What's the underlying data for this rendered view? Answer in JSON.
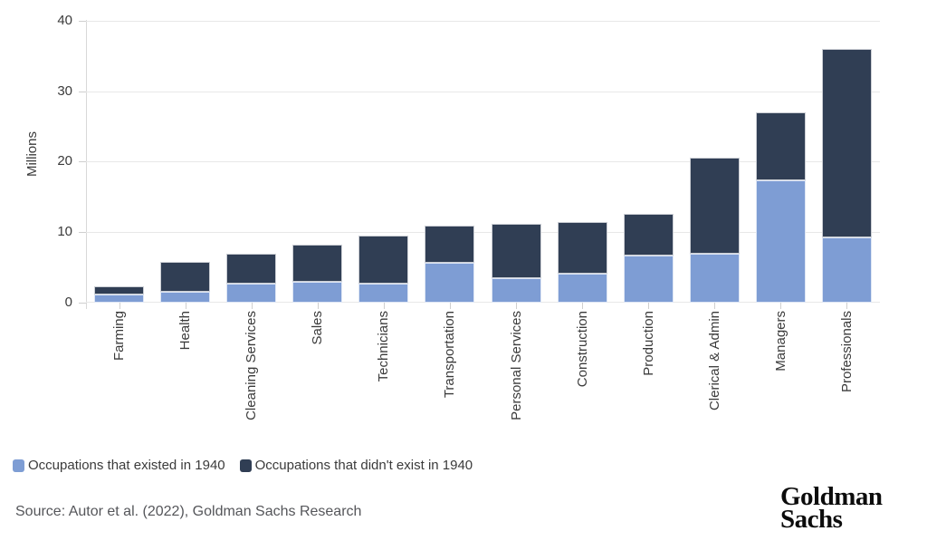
{
  "chart_data": {
    "type": "bar",
    "stacked": true,
    "ylabel": "Millions",
    "ylim": [
      0,
      40
    ],
    "yticks": [
      0,
      10,
      20,
      30,
      40
    ],
    "grid": true,
    "legend_position": "bottom-left",
    "categories": [
      "Farming",
      "Health",
      "Cleaning Services",
      "Sales",
      "Technicians",
      "Transportation",
      "Personal Services",
      "Construction",
      "Production",
      "Clerical & Admin",
      "Managers",
      "Professionals"
    ],
    "series": [
      {
        "name": "Occupations that existed in 1940",
        "color": "#7E9DD4",
        "values": [
          1.1,
          1.5,
          2.7,
          3.0,
          2.7,
          5.6,
          3.5,
          4.1,
          6.7,
          7.0,
          17.3,
          9.3
        ]
      },
      {
        "name": "Occupations that didn't exist in 1940",
        "color": "#303E54",
        "values": [
          1.2,
          4.2,
          4.3,
          5.3,
          6.8,
          5.3,
          7.7,
          7.3,
          5.9,
          13.6,
          9.7,
          26.7
        ]
      }
    ]
  },
  "footer": {
    "source": "Source: Autor et al. (2022), Goldman Sachs Research",
    "logo_line1": "Goldman",
    "logo_line2": "Sachs"
  }
}
